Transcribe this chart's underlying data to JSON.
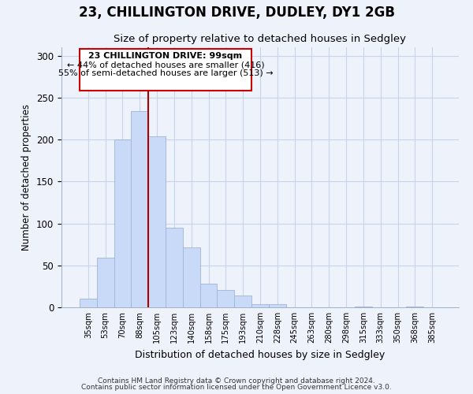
{
  "title": "23, CHILLINGTON DRIVE, DUDLEY, DY1 2GB",
  "subtitle": "Size of property relative to detached houses in Sedgley",
  "xlabel": "Distribution of detached houses by size in Sedgley",
  "ylabel": "Number of detached properties",
  "footer_line1": "Contains HM Land Registry data © Crown copyright and database right 2024.",
  "footer_line2": "Contains public sector information licensed under the Open Government Licence v3.0.",
  "bin_labels": [
    "35sqm",
    "53sqm",
    "70sqm",
    "88sqm",
    "105sqm",
    "123sqm",
    "140sqm",
    "158sqm",
    "175sqm",
    "193sqm",
    "210sqm",
    "228sqm",
    "245sqm",
    "263sqm",
    "280sqm",
    "298sqm",
    "315sqm",
    "333sqm",
    "350sqm",
    "368sqm",
    "385sqm"
  ],
  "bar_values": [
    10,
    59,
    200,
    234,
    204,
    95,
    71,
    28,
    21,
    14,
    4,
    4,
    0,
    0,
    0,
    0,
    1,
    0,
    0,
    1,
    0
  ],
  "bar_color": "#c9daf8",
  "bar_edgecolor": "#a0b4d8",
  "vline_x_index": 3.5,
  "vline_color": "#aa0000",
  "ylim": [
    0,
    310
  ],
  "yticks": [
    0,
    50,
    100,
    150,
    200,
    250,
    300
  ],
  "annotation_box_text_line1": "23 CHILLINGTON DRIVE: 99sqm",
  "annotation_box_text_line2": "← 44% of detached houses are smaller (416)",
  "annotation_box_text_line3": "55% of semi-detached houses are larger (513) →",
  "bg_color": "#eef2fb"
}
